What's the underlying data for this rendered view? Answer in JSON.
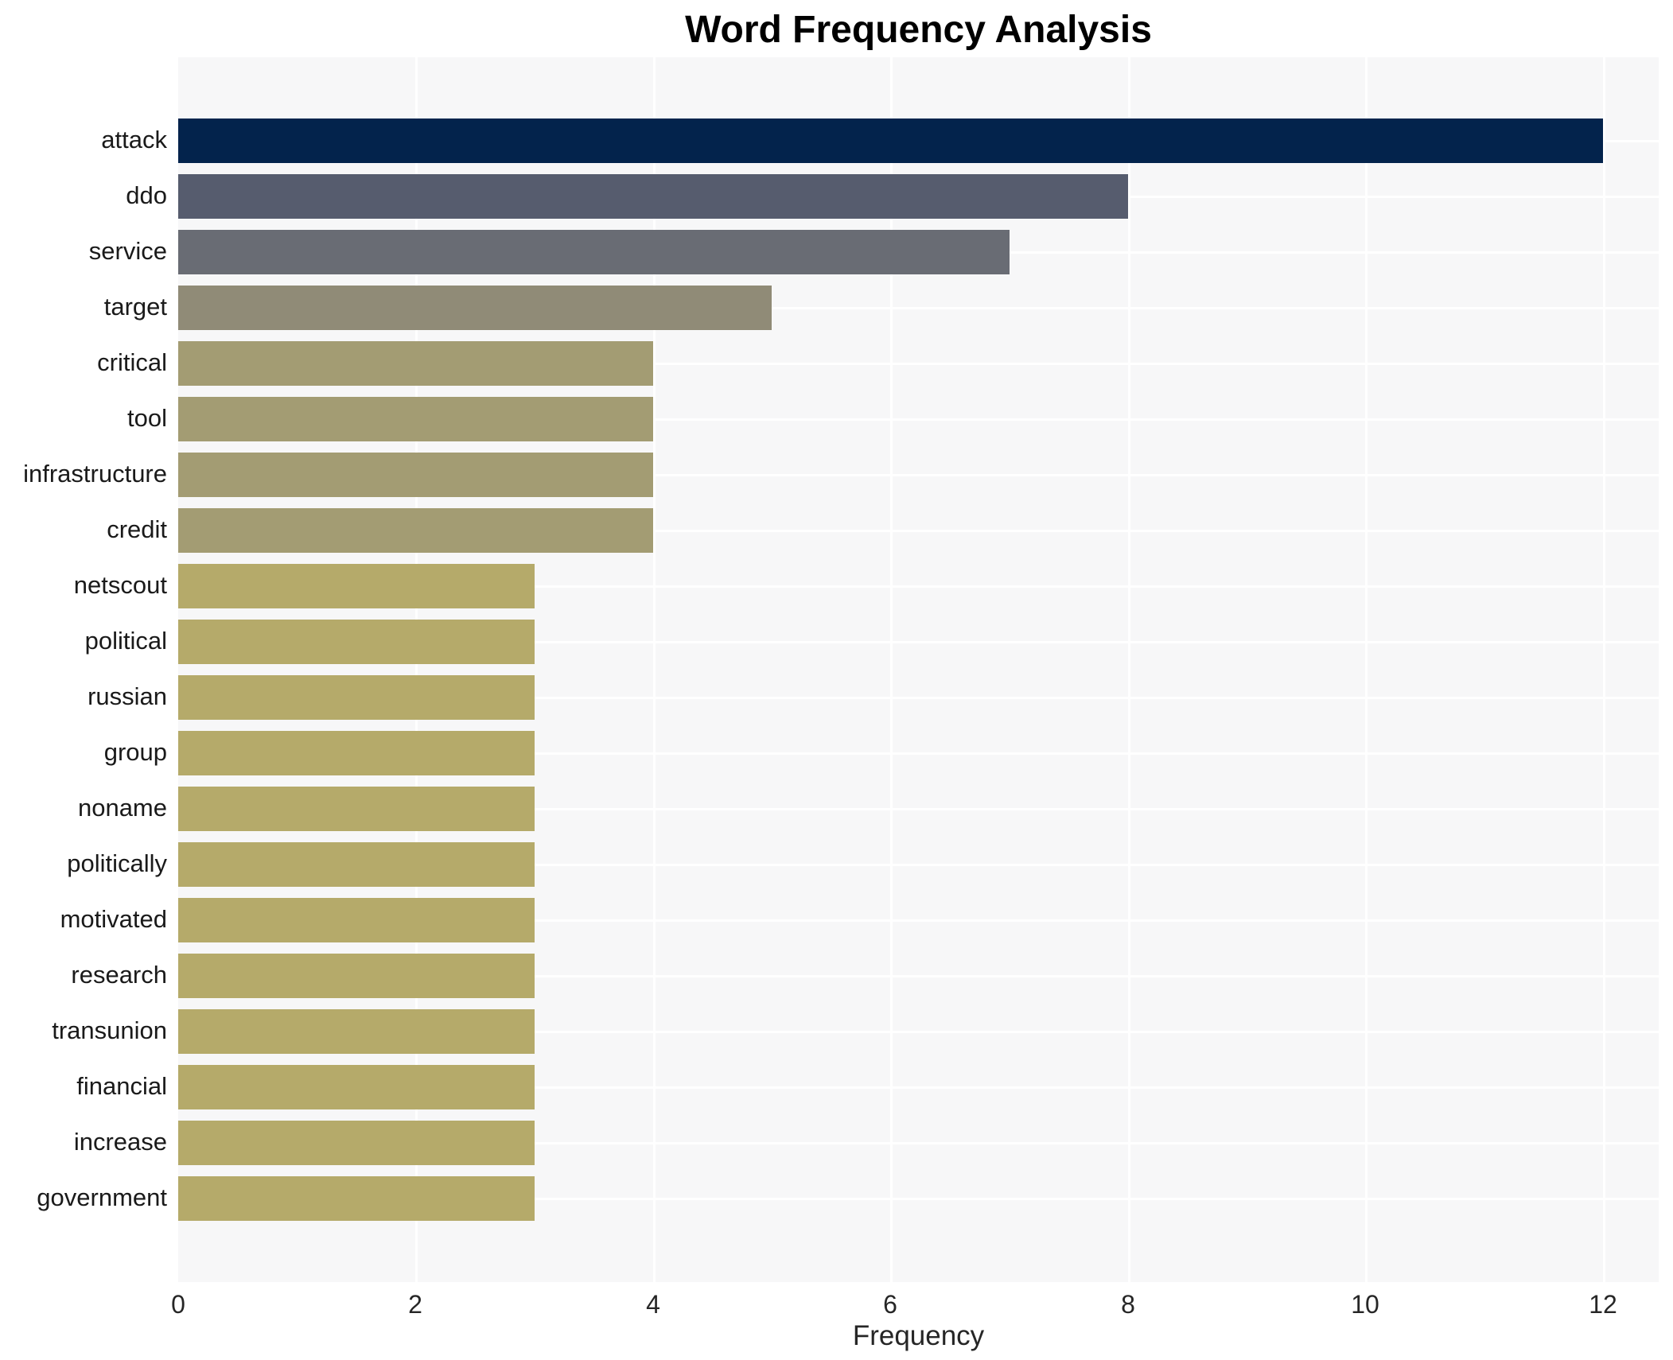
{
  "chart_data": {
    "type": "bar",
    "orientation": "horizontal",
    "title": "Word Frequency Analysis",
    "xlabel": "Frequency",
    "ylabel": "",
    "categories": [
      "attack",
      "ddo",
      "service",
      "target",
      "critical",
      "tool",
      "infrastructure",
      "credit",
      "netscout",
      "political",
      "russian",
      "group",
      "noname",
      "politically",
      "motivated",
      "research",
      "transunion",
      "financial",
      "increase",
      "government"
    ],
    "values": [
      12,
      8,
      7,
      5,
      4,
      4,
      4,
      4,
      3,
      3,
      3,
      3,
      3,
      3,
      3,
      3,
      3,
      3,
      3,
      3
    ],
    "bar_colors": [
      "#03234c",
      "#565c6e",
      "#696c74",
      "#908b77",
      "#a39c73",
      "#a39c73",
      "#a39c73",
      "#a39c73",
      "#b5aa6a",
      "#b5aa6a",
      "#b5aa6a",
      "#b5aa6a",
      "#b5aa6a",
      "#b5aa6a",
      "#b5aa6a",
      "#b5aa6a",
      "#b5aa6a",
      "#b5aa6a",
      "#b5aa6a",
      "#b5aa6a"
    ],
    "xlim": [
      0,
      12.47
    ],
    "xticks": [
      0,
      2,
      4,
      6,
      8,
      10,
      12
    ],
    "grid": true,
    "legend": false,
    "plot_bg": "#f7f7f8",
    "grid_color": "#ffffff"
  }
}
